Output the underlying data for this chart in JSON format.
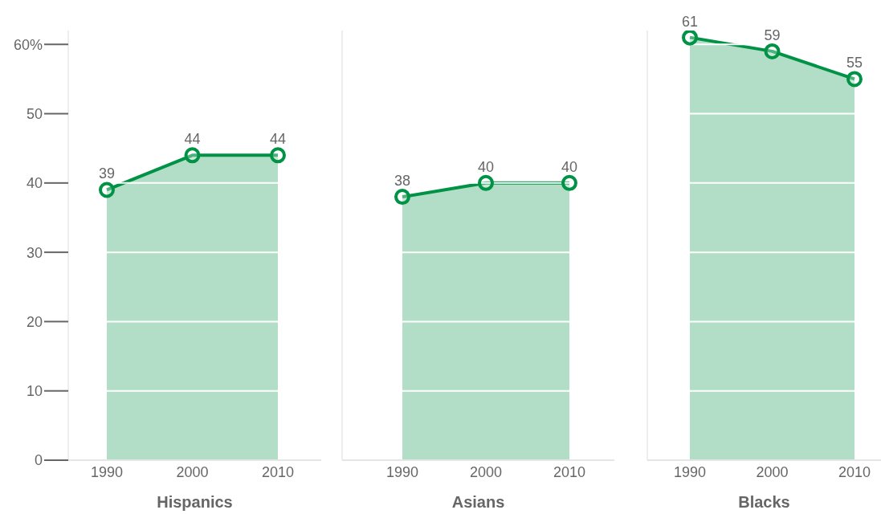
{
  "chart_data": [
    {
      "type": "area",
      "xlabel": "Hispanics",
      "categories": [
        "1990",
        "2000",
        "2010"
      ],
      "values": [
        39,
        44,
        44
      ],
      "color": "#009245",
      "ylim": [
        0,
        62
      ],
      "yticks": [
        0,
        10,
        20,
        30,
        40,
        50,
        {
          "value": 60,
          "label": "60%"
        }
      ],
      "grid": "y",
      "marker": "circle",
      "data_labels": true
    },
    {
      "type": "area",
      "xlabel": "Asians",
      "categories": [
        "1990",
        "2000",
        "2010"
      ],
      "values": [
        38,
        40,
        40
      ],
      "color": "#009245",
      "ylim": [
        0,
        62
      ],
      "yticks": [
        0,
        10,
        20,
        30,
        40,
        50,
        60
      ],
      "grid": "y",
      "marker": "circle",
      "data_labels": true,
      "tick_labels": "x"
    },
    {
      "type": "area",
      "xlabel": "Blacks",
      "categories": [
        "1990",
        "2000",
        "2010"
      ],
      "values": [
        61,
        59,
        55
      ],
      "color": "#009245",
      "ylim": [
        0,
        62
      ],
      "yticks": [
        0,
        10,
        20,
        30,
        40,
        50,
        60
      ],
      "grid": "y",
      "marker": "circle",
      "data_labels": true,
      "tick_labels": "x"
    }
  ]
}
